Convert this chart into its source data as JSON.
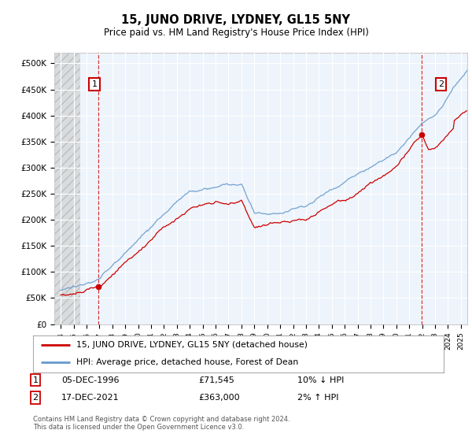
{
  "title": "15, JUNO DRIVE, LYDNEY, GL15 5NY",
  "subtitle": "Price paid vs. HM Land Registry's House Price Index (HPI)",
  "legend_line1": "15, JUNO DRIVE, LYDNEY, GL15 5NY (detached house)",
  "legend_line2": "HPI: Average price, detached house, Forest of Dean",
  "annotation1_label": "1",
  "annotation1_date": "05-DEC-1996",
  "annotation1_price": "£71,545",
  "annotation1_hpi": "10% ↓ HPI",
  "annotation2_label": "2",
  "annotation2_date": "17-DEC-2021",
  "annotation2_price": "£363,000",
  "annotation2_hpi": "2% ↑ HPI",
  "footer": "Contains HM Land Registry data © Crown copyright and database right 2024.\nThis data is licensed under the Open Government Licence v3.0.",
  "sale1_year": 1996.92,
  "sale1_price": 71545,
  "sale2_year": 2021.96,
  "sale2_price": 363000,
  "hatch_end_year": 1995.5,
  "red_line_color": "#cc0000",
  "blue_line_color": "#6699cc",
  "annotation_box_color": "#cc0000",
  "plot_bg_color": "#eef4fb",
  "ylim": [
    0,
    520000
  ],
  "xlim_start": 1993.5,
  "xlim_end": 2025.5,
  "ytick_values": [
    0,
    50000,
    100000,
    150000,
    200000,
    250000,
    300000,
    350000,
    400000,
    450000,
    500000
  ],
  "ytick_labels": [
    "£0",
    "£50K",
    "£100K",
    "£150K",
    "£200K",
    "£250K",
    "£300K",
    "£350K",
    "£400K",
    "£450K",
    "£500K"
  ],
  "xtick_years": [
    1994,
    1995,
    1996,
    1997,
    1998,
    1999,
    2000,
    2001,
    2002,
    2003,
    2004,
    2005,
    2006,
    2007,
    2008,
    2009,
    2010,
    2011,
    2012,
    2013,
    2014,
    2015,
    2016,
    2017,
    2018,
    2019,
    2020,
    2021,
    2022,
    2023,
    2024,
    2025
  ]
}
